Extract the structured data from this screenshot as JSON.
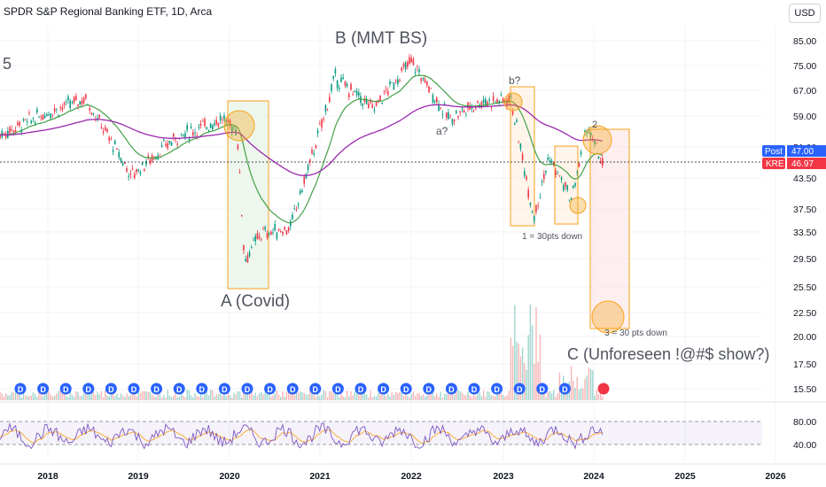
{
  "header": {
    "title": "SPDR S&P Regional Banking ETF, 1D, Arca",
    "currency": "USD",
    "edge_label": "5"
  },
  "price_tags": {
    "post_label": "Post",
    "post_value": "47.00",
    "symbol_label": "KRE",
    "symbol_value": "46.97",
    "post_color": "#2962ff",
    "symbol_color": "#f23645"
  },
  "annotations": {
    "wave_a": "A (Covid)",
    "wave_b": "B (MMT BS)",
    "wave_c": "C (Unforeseen !@#$ show?)",
    "sub_a": "a?",
    "sub_b": "b?",
    "sub_2": "2",
    "note_1": "1 = 30pts down",
    "note_3": "3 = 30 pts down"
  },
  "colors": {
    "up": "#089981",
    "down": "#f23645",
    "ema_short": "#43a047",
    "ema_long": "#9c27b0",
    "box_green": "#e8f5e9",
    "box_orange": "#f7a21b",
    "rsi_line": "#7e57c2",
    "rsi_signal": "#f9a825"
  },
  "chart_data": {
    "type": "candlestick",
    "symbol": "KRE",
    "title": "SPDR S&P Regional Banking ETF, 1D, Arca",
    "y_scale": "log",
    "ylim": [
      14.5,
      90
    ],
    "y_ticks": [
      "85.00",
      "75.00",
      "67.00",
      "59.00",
      "51.00",
      "43.50",
      "37.50",
      "33.50",
      "29.50",
      "25.50",
      "22.50",
      "20.00",
      "17.50",
      "15.50"
    ],
    "x_ticks": [
      "2018",
      "2019",
      "2020",
      "2021",
      "2022",
      "2023",
      "2024",
      "2025",
      "2026"
    ],
    "last_price": 46.97,
    "post_price": 47.0,
    "close_path": [
      {
        "date": "2017-06",
        "close": 53
      },
      {
        "date": "2018-01",
        "close": 60
      },
      {
        "date": "2018-06",
        "close": 64
      },
      {
        "date": "2018-12",
        "close": 44
      },
      {
        "date": "2019-06",
        "close": 53
      },
      {
        "date": "2019-12",
        "close": 58
      },
      {
        "date": "2020-02",
        "close": 55
      },
      {
        "date": "2020-03",
        "close": 29
      },
      {
        "date": "2020-05",
        "close": 33
      },
      {
        "date": "2020-09",
        "close": 34
      },
      {
        "date": "2021-01",
        "close": 55
      },
      {
        "date": "2021-03",
        "close": 71
      },
      {
        "date": "2021-08",
        "close": 61
      },
      {
        "date": "2022-01",
        "close": 77
      },
      {
        "date": "2022-06",
        "close": 58
      },
      {
        "date": "2022-10",
        "close": 63
      },
      {
        "date": "2023-02",
        "close": 64
      },
      {
        "date": "2023-05",
        "close": 36
      },
      {
        "date": "2023-07",
        "close": 48
      },
      {
        "date": "2023-10",
        "close": 39
      },
      {
        "date": "2023-12",
        "close": 56
      },
      {
        "date": "2024-02",
        "close": 47
      }
    ],
    "rsi": {
      "levels": [
        40,
        80
      ],
      "visible_ticks": [
        "80.00",
        "40.00"
      ]
    }
  }
}
